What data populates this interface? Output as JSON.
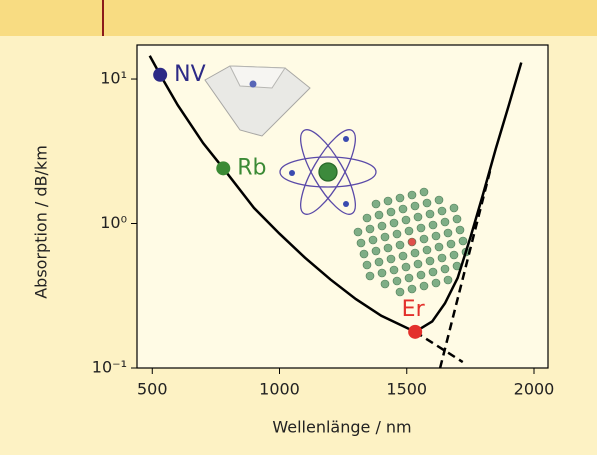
{
  "chart_data": {
    "type": "line",
    "y_label": "Absorption / dB/km",
    "x_label": "Wellenlänge / nm",
    "xlim": [
      440,
      2055
    ],
    "ylim": [
      0.1,
      17.2
    ],
    "log_y": true,
    "xticks": [
      500,
      1000,
      1500,
      2000
    ],
    "yticks": [
      {
        "value": 0.1,
        "label": "10⁻¹"
      },
      {
        "value": 1,
        "label": "10⁰"
      },
      {
        "value": 10,
        "label": "10¹"
      }
    ],
    "curves": [
      {
        "style": "solid",
        "color": "#000000",
        "x": [
          490,
          531,
          600,
          700,
          779,
          900,
          1000,
          1100,
          1200,
          1300,
          1400,
          1533,
          1600,
          1650,
          1700,
          1750,
          1800,
          1850,
          1900,
          1950
        ],
        "values": [
          14.5,
          10.7,
          6.6,
          3.6,
          2.41,
          1.28,
          0.85,
          0.58,
          0.41,
          0.3,
          0.23,
          0.178,
          0.21,
          0.28,
          0.42,
          0.8,
          1.6,
          3.3,
          6.5,
          13
        ]
      },
      {
        "style": "dashed",
        "color": "#000000",
        "x": [
          1533,
          1720
        ],
        "values": [
          0.178,
          0.11
        ]
      },
      {
        "style": "dashed",
        "color": "#000000",
        "x": [
          1631,
          1827
        ],
        "values": [
          0.1,
          2.3
        ]
      }
    ],
    "points": [
      {
        "label": "NV",
        "x": 531,
        "value": 10.7,
        "color": "#2c2a86"
      },
      {
        "label": "Rb",
        "x": 779,
        "value": 2.41,
        "color": "#3b8a35"
      },
      {
        "label": "Er",
        "x": 1533,
        "value": 0.178,
        "color": "#e3302b"
      }
    ]
  }
}
